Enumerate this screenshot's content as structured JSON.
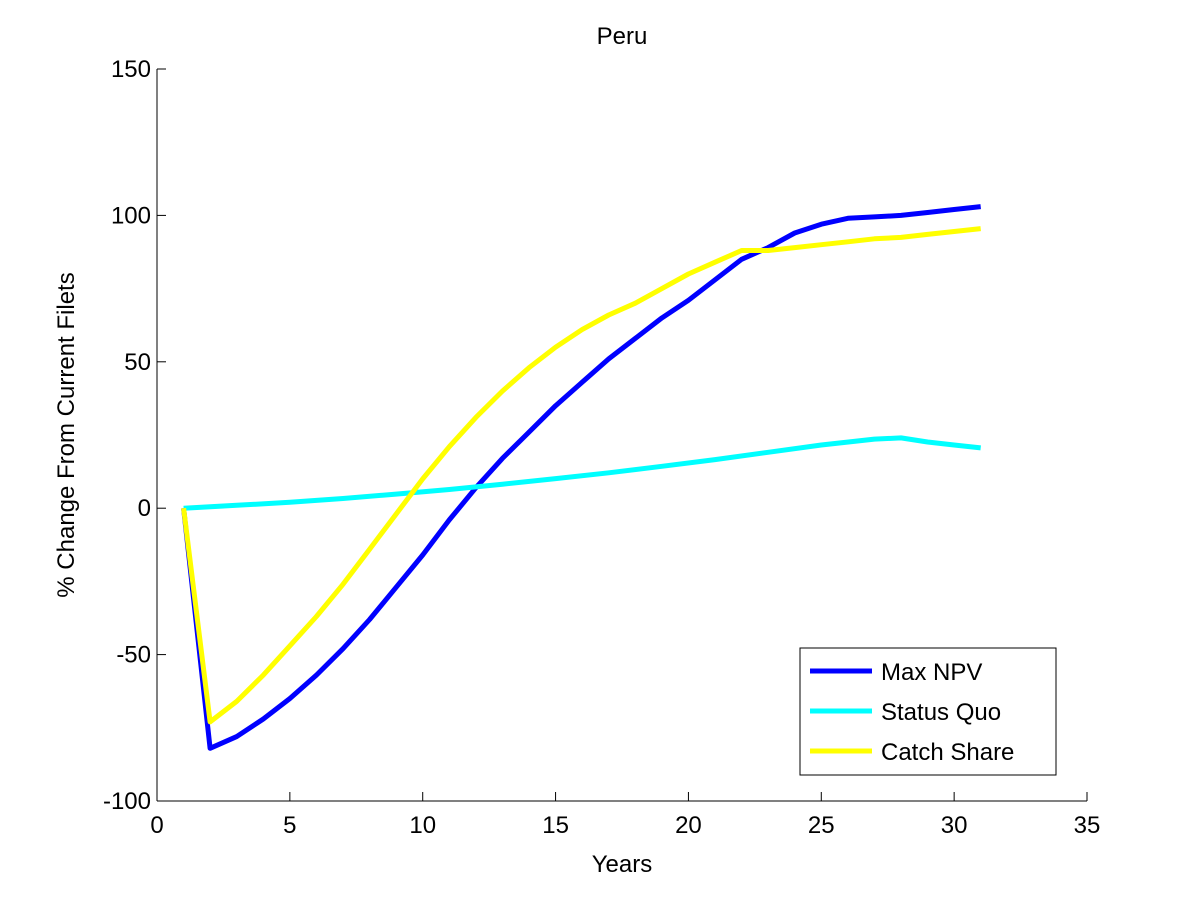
{
  "chart_data": {
    "type": "line",
    "title": "Peru",
    "xlabel": "Years",
    "ylabel": "% Change From Current Filets",
    "xlim": [
      0,
      35
    ],
    "ylim": [
      -100,
      150
    ],
    "xticks": [
      0,
      5,
      10,
      15,
      20,
      25,
      30,
      35
    ],
    "yticks": [
      -100,
      -50,
      0,
      50,
      100,
      150
    ],
    "grid": false,
    "legend_position": "bottom-right",
    "series": [
      {
        "name": "Max NPV",
        "color": "#0000ff",
        "x": [
          1,
          2,
          3,
          4,
          5,
          6,
          7,
          8,
          9,
          10,
          11,
          12,
          13,
          14,
          15,
          16,
          17,
          18,
          19,
          20,
          21,
          22,
          23,
          24,
          25,
          26,
          27,
          28,
          29,
          30,
          31
        ],
        "y": [
          0,
          -82,
          -78,
          -72,
          -65,
          -57,
          -48,
          -38,
          -27,
          -16,
          -4,
          7,
          17,
          26,
          35,
          43,
          51,
          58,
          65,
          71,
          78,
          85,
          89,
          94,
          97,
          99,
          99.5,
          100,
          101,
          102,
          103
        ]
      },
      {
        "name": "Status Quo",
        "color": "#00ffff",
        "x": [
          1,
          3,
          5,
          7,
          9,
          11,
          13,
          15,
          17,
          19,
          21,
          23,
          25,
          27,
          28,
          29,
          30,
          31
        ],
        "y": [
          0,
          1,
          2,
          3.3,
          4.8,
          6.4,
          8.2,
          10.1,
          12.1,
          14.3,
          16.6,
          19.1,
          21.6,
          23.6,
          24,
          22.6,
          21.6,
          20.6
        ]
      },
      {
        "name": "Catch Share",
        "color": "#ffff00",
        "x": [
          1,
          2,
          3,
          4,
          5,
          6,
          7,
          8,
          9,
          10,
          11,
          12,
          13,
          14,
          15,
          16,
          17,
          18,
          19,
          20,
          21,
          22,
          23,
          24,
          25,
          26,
          27,
          28,
          29,
          30,
          31
        ],
        "y": [
          0,
          -73,
          -66,
          -57,
          -47,
          -37,
          -26,
          -14,
          -2,
          10,
          21,
          31,
          40,
          48,
          55,
          61,
          66,
          70,
          75,
          80,
          84,
          88,
          88,
          89,
          90,
          91,
          92,
          92.5,
          93.5,
          94.5,
          95.5
        ]
      }
    ]
  }
}
